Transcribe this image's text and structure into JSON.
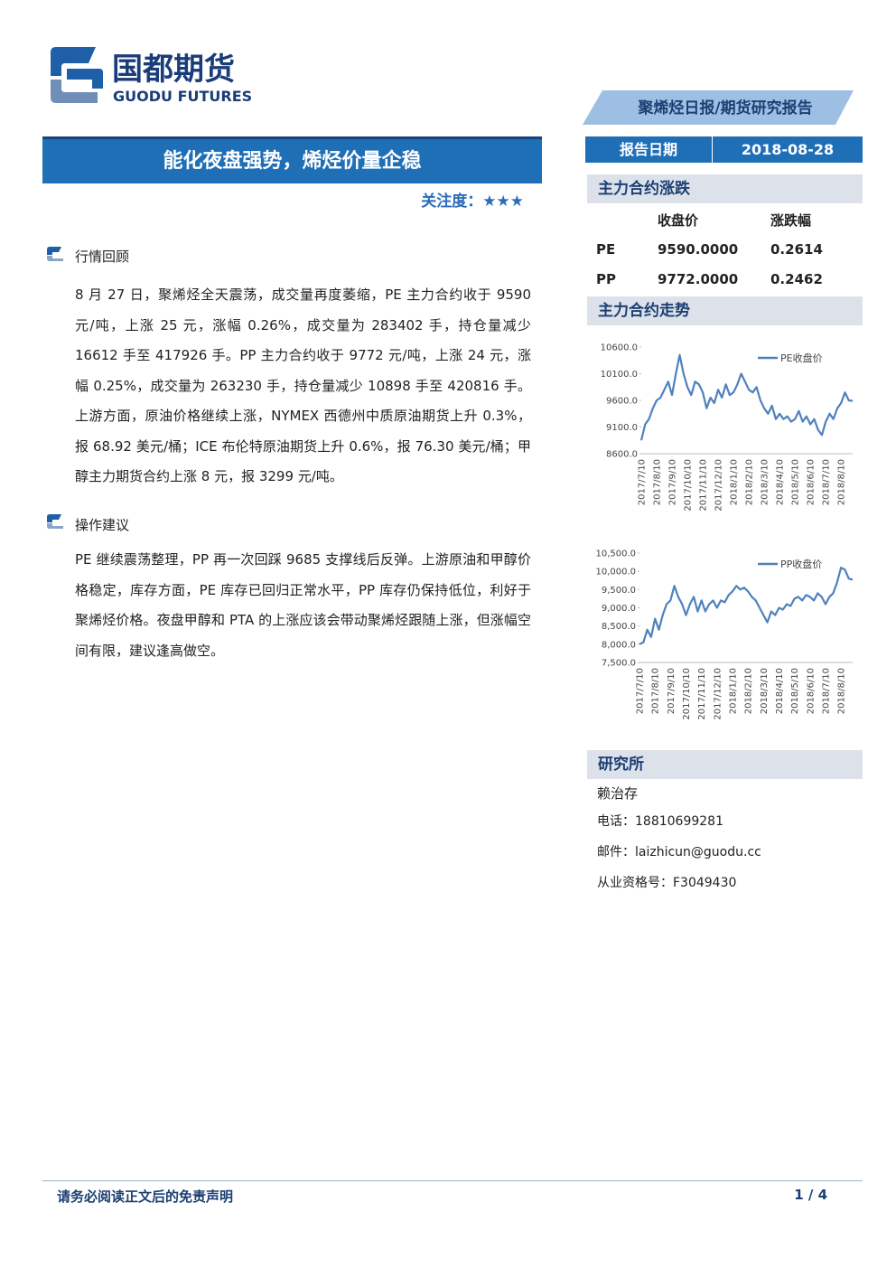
{
  "header": {
    "logo_cn": "国都期货",
    "logo_en": "GUODU FUTURES",
    "report_type": "聚烯烃日报/期货研究报告"
  },
  "title": "能化夜盘强势，烯烃价量企稳",
  "attention": "关注度：★★★",
  "report_date": {
    "label": "报告日期",
    "value": "2018-08-28"
  },
  "sections": [
    {
      "heading": "行情回顾",
      "paragraphs": [
        "8 月 27 日，聚烯烃全天震荡，成交量再度萎缩，PE 主力合约收于 9590 元/吨，上涨 25 元，涨幅 0.26%，成交量为 283402 手，持仓量减少 16612 手至 417926 手。PP 主力合约收于 9772 元/吨，上涨 24 元，涨幅 0.25%，成交量为 263230 手，持仓量减少 10898 手至 420816 手。上游方面，原油价格继续上涨，NYMEX 西德州中质原油期货上升 0.3%，报 68.92 美元/桶；ICE 布伦特原油期货上升 0.6%，报 76.30 美元/桶；甲醇主力期货合约上涨 8 元，报 3299 元/吨。"
      ]
    },
    {
      "heading": "操作建议",
      "paragraphs": [
        "PE 继续震荡整理，PP 再一次回踩 9685 支撑线后反弹。上游原油和甲醇价格稳定，库存方面，PE 库存已回归正常水平，PP 库存仍保持低位，利好于聚烯烃价格。夜盘甲醇和 PTA 的上涨应该会带动聚烯烃跟随上涨，但涨幅空间有限，建议逢高做空。"
      ]
    }
  ],
  "contracts": {
    "heading": "主力合约涨跌",
    "columns": [
      "收盘价",
      "涨跌幅"
    ],
    "rows": [
      [
        "PE",
        "9590.0000",
        "0.2614"
      ],
      [
        "PP",
        "9772.0000",
        "0.2462"
      ]
    ]
  },
  "trend_heading": "主力合约走势",
  "chart_data": [
    {
      "type": "line",
      "legend": "upper right",
      "grid": false,
      "categories": [
        "2017/7/10",
        null,
        null,
        null,
        "2017/8/10",
        null,
        null,
        null,
        "2017/9/10",
        null,
        null,
        null,
        "2017/10/10",
        null,
        null,
        null,
        "2017/11/10",
        null,
        null,
        null,
        "2017/12/10",
        null,
        null,
        null,
        "2018/1/10",
        null,
        null,
        null,
        "2018/2/10",
        null,
        null,
        null,
        "2018/3/10",
        null,
        null,
        null,
        "2018/4/10",
        null,
        null,
        null,
        "2018/5/10",
        null,
        null,
        null,
        "2018/6/10",
        null,
        null,
        null,
        "2018/7/10",
        null,
        null,
        null,
        "2018/8/10",
        null,
        null,
        null
      ],
      "series": [
        {
          "name": "PE收盘价",
          "color": "#4f81bd",
          "values": [
            8850,
            9150,
            9250,
            9450,
            9600,
            9650,
            9800,
            9950,
            9700,
            10100,
            10450,
            10100,
            9850,
            9700,
            9950,
            9900,
            9750,
            9450,
            9650,
            9550,
            9800,
            9650,
            9900,
            9700,
            9750,
            9900,
            10100,
            9950,
            9800,
            9750,
            9850,
            9600,
            9450,
            9350,
            9500,
            9250,
            9350,
            9250,
            9300,
            9200,
            9250,
            9400,
            9200,
            9300,
            9150,
            9250,
            9050,
            8950,
            9200,
            9350,
            9250,
            9450,
            9550,
            9750,
            9600,
            9590
          ]
        }
      ],
      "ylim": [
        8600,
        10600
      ],
      "yticks": [
        {
          "value": 8600,
          "label": "8600.0"
        },
        {
          "value": 9100,
          "label": "9100.0"
        },
        {
          "value": 9600,
          "label": "9600.0"
        },
        {
          "value": 10100,
          "label": "10100.0"
        },
        {
          "value": 10600,
          "label": "10600.0"
        }
      ]
    },
    {
      "type": "line",
      "legend": "upper right",
      "grid": false,
      "categories": [
        "2017/7/10",
        null,
        null,
        null,
        "2017/8/10",
        null,
        null,
        null,
        "2017/9/10",
        null,
        null,
        null,
        "2017/10/10",
        null,
        null,
        null,
        "2017/11/10",
        null,
        null,
        null,
        "2017/12/10",
        null,
        null,
        null,
        "2018/1/10",
        null,
        null,
        null,
        "2018/2/10",
        null,
        null,
        null,
        "2018/3/10",
        null,
        null,
        null,
        "2018/4/10",
        null,
        null,
        null,
        "2018/5/10",
        null,
        null,
        null,
        "2018/6/10",
        null,
        null,
        null,
        "2018/7/10",
        null,
        null,
        null,
        "2018/8/10",
        null,
        null,
        null
      ],
      "series": [
        {
          "name": "PP收盘价",
          "color": "#4f81bd",
          "values": [
            8000,
            8050,
            8400,
            8200,
            8700,
            8400,
            8800,
            9100,
            9200,
            9600,
            9300,
            9100,
            8800,
            9100,
            9300,
            8900,
            9200,
            8900,
            9100,
            9200,
            9000,
            9200,
            9150,
            9350,
            9450,
            9600,
            9500,
            9550,
            9450,
            9300,
            9200,
            9000,
            8800,
            8600,
            8900,
            8800,
            9000,
            8950,
            9100,
            9050,
            9250,
            9300,
            9200,
            9350,
            9300,
            9200,
            9400,
            9300,
            9100,
            9300,
            9400,
            9700,
            10100,
            10050,
            9800,
            9772
          ]
        }
      ],
      "ylim": [
        7500,
        10500
      ],
      "yticks": [
        {
          "value": 7500,
          "label": "7,500.0"
        },
        {
          "value": 8000,
          "label": "8,000.0"
        },
        {
          "value": 8500,
          "label": "8,500.0"
        },
        {
          "value": 9000,
          "label": "9,000.0"
        },
        {
          "value": 9500,
          "label": "9,500.0"
        },
        {
          "value": 10000,
          "label": "10,000.0"
        },
        {
          "value": 10500,
          "label": "10,500.0"
        }
      ]
    }
  ],
  "research": {
    "heading": "研究所",
    "name": "赖治存",
    "phone": "电话：18810699281",
    "email": "邮件：laizhicun@guodu.cc",
    "license": "从业资格号：F3049430"
  },
  "footer": {
    "disclaimer": "请务必阅读正文后的免责声明",
    "page": "1 / 4"
  }
}
